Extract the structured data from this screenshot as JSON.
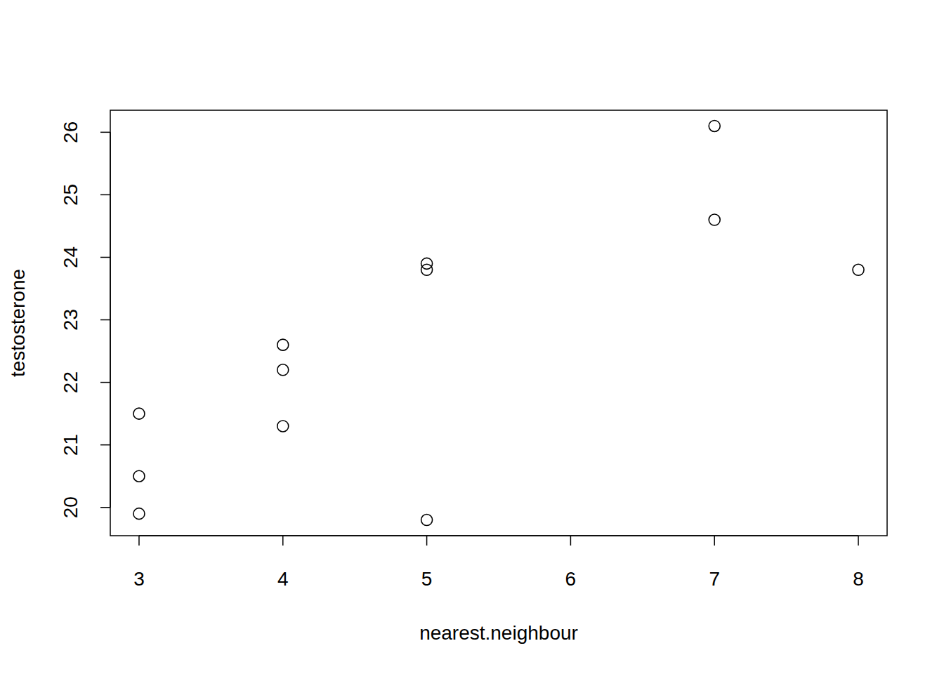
{
  "chart_data": {
    "type": "scatter",
    "x_label": "nearest.neighbour",
    "y_label": "testosterone",
    "x": [
      3,
      3,
      3,
      4,
      4,
      4,
      5,
      5,
      5,
      7,
      7,
      8
    ],
    "values": [
      21.5,
      20.5,
      19.9,
      22.6,
      22.2,
      21.3,
      23.9,
      23.8,
      19.8,
      26.1,
      24.6,
      23.8
    ],
    "xlim": [
      2.8,
      8.2
    ],
    "ylim": [
      19.548,
      26.352
    ],
    "xticks": [
      3,
      4,
      5,
      6,
      7,
      8
    ],
    "yticks": [
      20,
      21,
      22,
      23,
      24,
      25,
      26
    ],
    "color": "#000000",
    "marker": "open-circle",
    "grid": false
  }
}
